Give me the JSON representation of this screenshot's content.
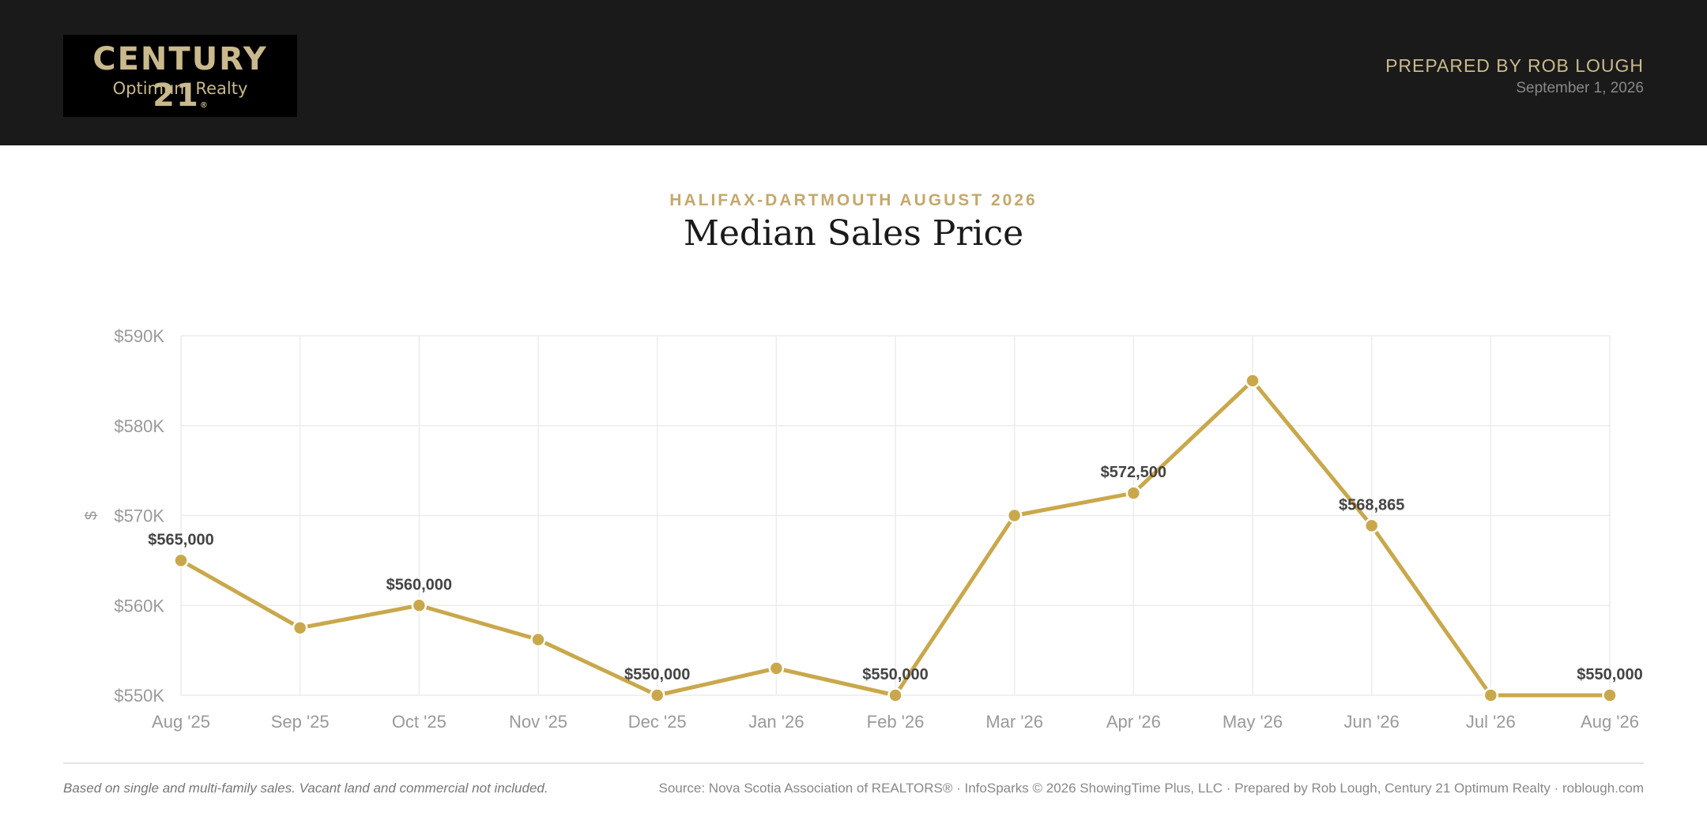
{
  "header": {
    "logo_main": "CENTURY 21",
    "logo_mark": "®",
    "logo_sub": "Optimum Realty",
    "prepared_by": "PREPARED BY ROB LOUGH",
    "date": "September 1, 2026"
  },
  "kicker": "HALIFAX-DARTMOUTH AUGUST 2026",
  "title": "Median Sales Price",
  "colors": {
    "header_bg": "#1a1a1a",
    "gold": "#c9a84c",
    "accent_text": "#c4a86c"
  },
  "chart_data": {
    "type": "line",
    "categories": [
      "Aug '25",
      "Sep '25",
      "Oct '25",
      "Nov '25",
      "Dec '25",
      "Jan '26",
      "Feb '26",
      "Mar '26",
      "Apr '26",
      "May '26",
      "Jun '26",
      "Jul '26",
      "Aug '26"
    ],
    "values": [
      565000,
      557500,
      560000,
      556200,
      550000,
      553000,
      550000,
      570000,
      572500,
      585000,
      568865,
      550000,
      550000
    ],
    "data_labels": [
      {
        "index": 0,
        "text": "$565,000"
      },
      {
        "index": 2,
        "text": "$560,000"
      },
      {
        "index": 4,
        "text": "$550,000"
      },
      {
        "index": 6,
        "text": "$550,000"
      },
      {
        "index": 8,
        "text": "$572,500"
      },
      {
        "index": 10,
        "text": "$568,865"
      },
      {
        "index": 12,
        "text": "$550,000"
      }
    ],
    "ylabel": "$",
    "ylim": [
      550000,
      590000
    ],
    "yticks": [
      550000,
      560000,
      570000,
      580000,
      590000
    ],
    "ytick_labels": [
      "$550K",
      "$560K",
      "$570K",
      "$580K",
      "$590K"
    ],
    "grid": true,
    "line_color": "#c9a84c"
  },
  "footer": {
    "note": "Based on single and multi-family sales. Vacant land and commercial not included.",
    "source": "Source: Nova Scotia Association of REALTORS® · InfoSparks © 2026 ShowingTime Plus, LLC · Prepared by Rob Lough, Century 21 Optimum Realty · roblough.com"
  }
}
